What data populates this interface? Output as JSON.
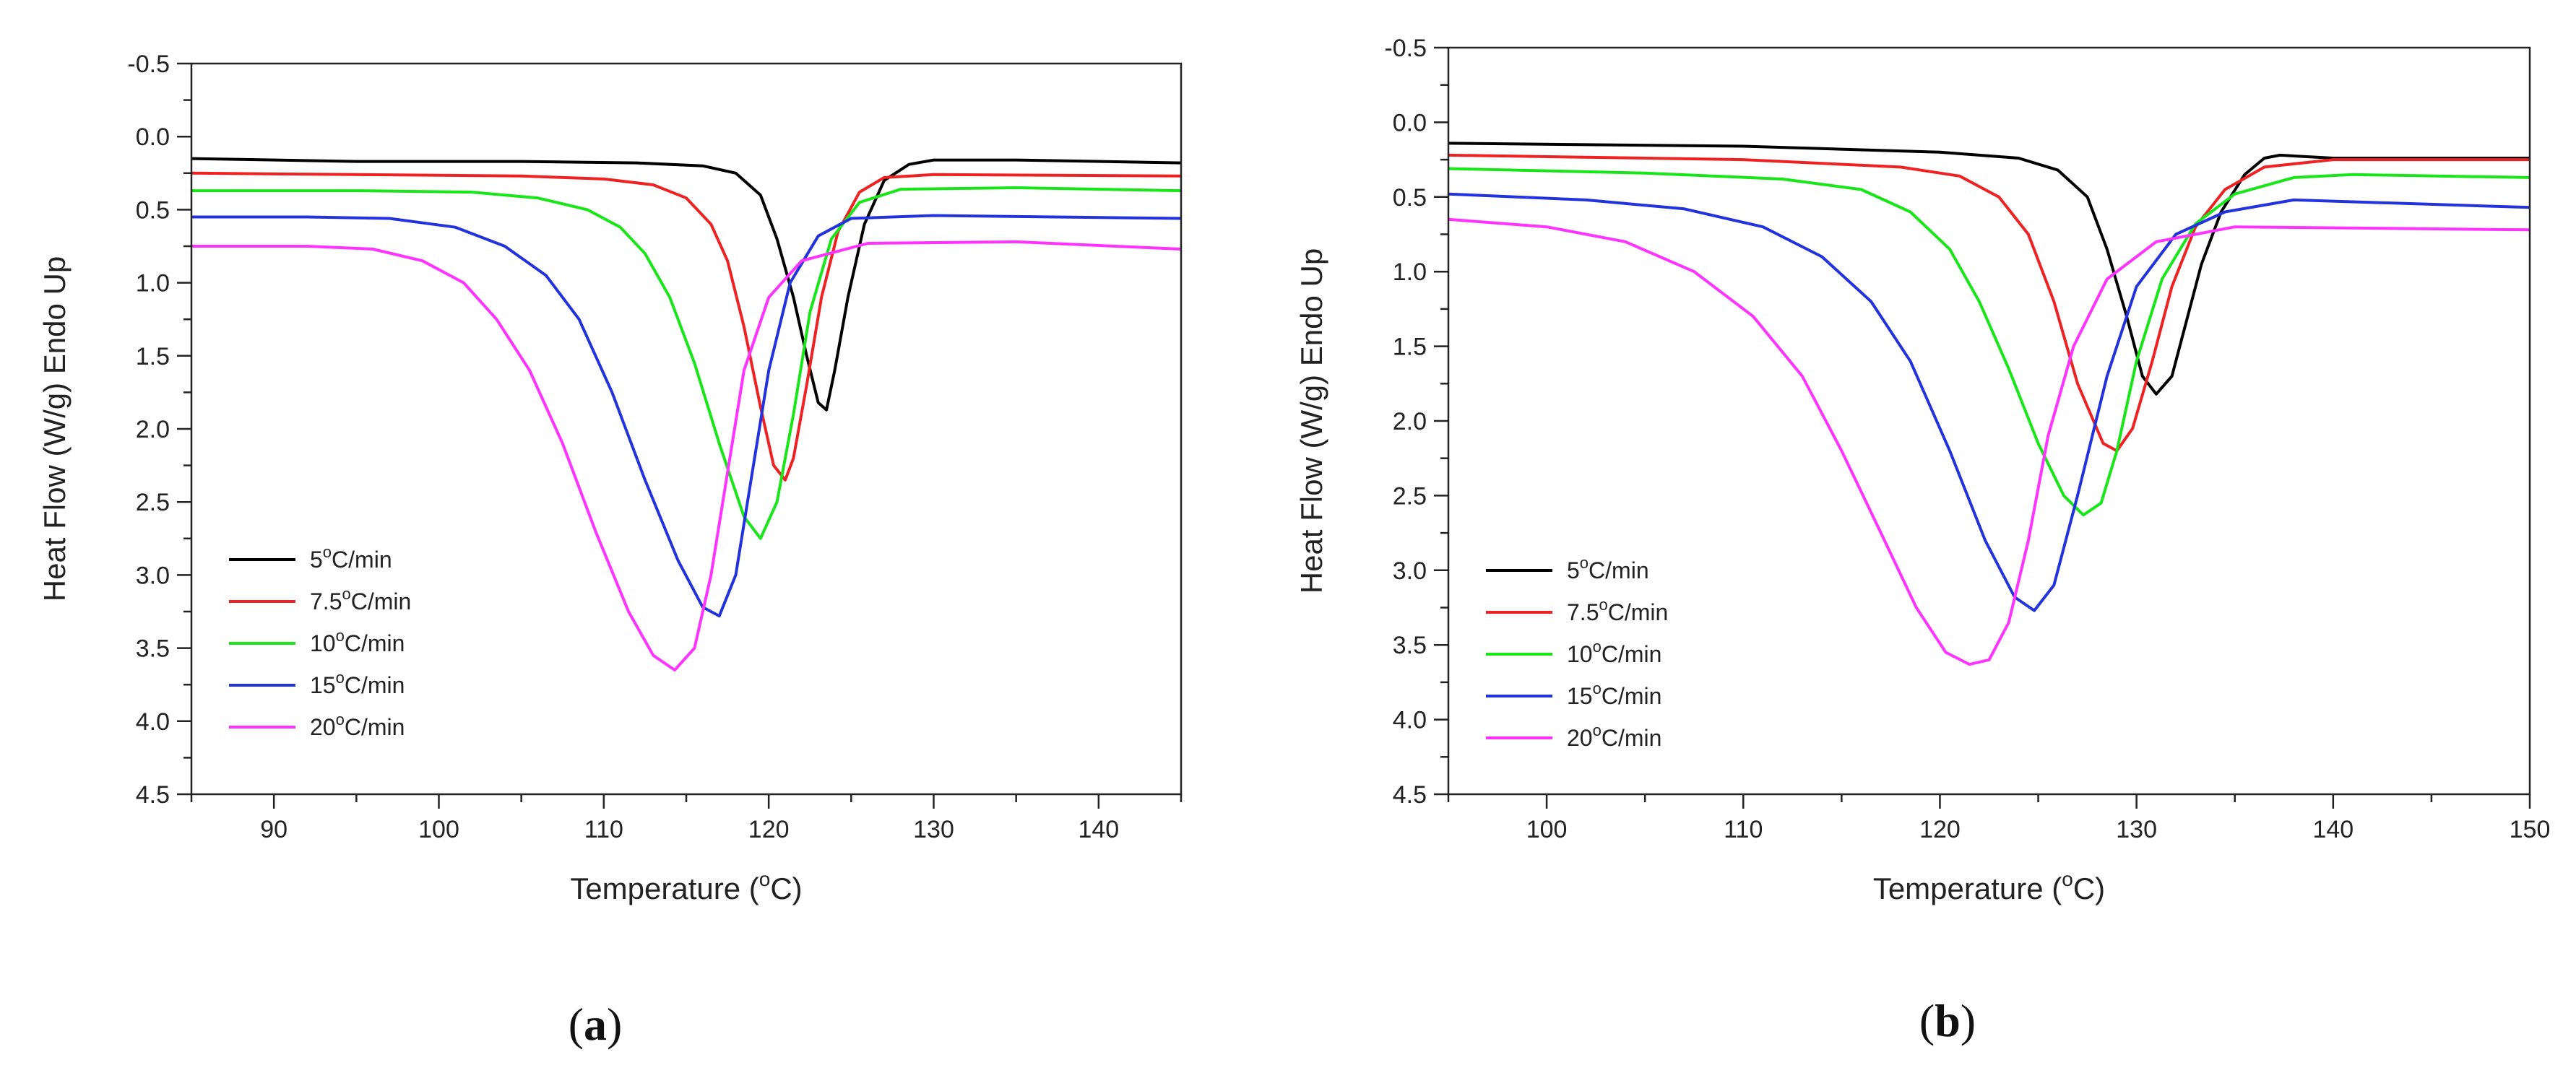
{
  "chart_data": [
    {
      "type": "line",
      "panel": "a",
      "panel_label": "a",
      "xlabel": "Temperature (oC)",
      "xlabel_parts": {
        "pre": "Temperature (",
        "sup": "o",
        "post": "C)"
      },
      "ylabel": "Heat Flow (W/g) Endo Up",
      "xlim": [
        85,
        145
      ],
      "ylim_top": -0.5,
      "ylim_bottom": 4.5,
      "y_inverted": true,
      "x_ticks": [
        90,
        100,
        110,
        120,
        130,
        140
      ],
      "y_ticks": [
        -0.5,
        0.0,
        0.5,
        1.0,
        1.5,
        2.0,
        2.5,
        3.0,
        3.5,
        4.0,
        4.5
      ],
      "x_tick_labels": [
        "90",
        "100",
        "110",
        "120",
        "130",
        "140"
      ],
      "y_tick_labels": [
        "-0.5",
        "0.0",
        "0.5",
        "1.0",
        "1.5",
        "2.0",
        "2.5",
        "3.0",
        "3.5",
        "4.0",
        "4.5"
      ],
      "legend_position": "bottom-left",
      "series": [
        {
          "name": "5oC/min",
          "label_num": "5",
          "label_unit": "C/min",
          "color": "#000000",
          "x": [
            85,
            95,
            105,
            112,
            116,
            118,
            119.5,
            120.5,
            121.5,
            122.3,
            123,
            123.5,
            124,
            124.8,
            125.8,
            127,
            128.5,
            130,
            135,
            145
          ],
          "y": [
            0.15,
            0.17,
            0.17,
            0.18,
            0.2,
            0.25,
            0.4,
            0.7,
            1.1,
            1.5,
            1.82,
            1.87,
            1.6,
            1.1,
            0.6,
            0.3,
            0.19,
            0.16,
            0.16,
            0.18
          ]
        },
        {
          "name": "7.5oC/min",
          "label_num": "7.5",
          "label_unit": "C/min",
          "color": "#ee2222",
          "x": [
            85,
            95,
            105,
            110,
            113,
            115,
            116.5,
            117.5,
            118.5,
            119.5,
            120.3,
            121,
            121.5,
            122.3,
            123.2,
            124.2,
            125.5,
            127,
            130,
            145
          ],
          "y": [
            0.25,
            0.26,
            0.27,
            0.29,
            0.33,
            0.42,
            0.6,
            0.85,
            1.3,
            1.85,
            2.25,
            2.35,
            2.2,
            1.7,
            1.1,
            0.65,
            0.38,
            0.28,
            0.26,
            0.27
          ]
        },
        {
          "name": "10oC/min",
          "label_num": "10",
          "label_unit": "C/min",
          "color": "#19e619",
          "x": [
            85,
            95,
            102,
            106,
            109,
            111,
            112.5,
            114,
            115.5,
            117,
            118.5,
            119.5,
            120.5,
            121.5,
            122.5,
            123.8,
            125.5,
            128,
            135,
            145
          ],
          "y": [
            0.37,
            0.37,
            0.38,
            0.42,
            0.5,
            0.62,
            0.8,
            1.1,
            1.55,
            2.1,
            2.6,
            2.75,
            2.5,
            1.9,
            1.2,
            0.7,
            0.45,
            0.36,
            0.35,
            0.37
          ]
        },
        {
          "name": "15oC/min",
          "label_num": "15",
          "label_unit": "C/min",
          "color": "#2233dd",
          "x": [
            85,
            92,
            97,
            101,
            104,
            106.5,
            108.5,
            110.5,
            112.5,
            114.5,
            116,
            117,
            118,
            119,
            120,
            121.3,
            123,
            125,
            130,
            145
          ],
          "y": [
            0.55,
            0.55,
            0.56,
            0.62,
            0.75,
            0.95,
            1.25,
            1.75,
            2.35,
            2.9,
            3.22,
            3.28,
            3.0,
            2.3,
            1.6,
            1.0,
            0.68,
            0.56,
            0.54,
            0.56
          ]
        },
        {
          "name": "20oC/min",
          "label_num": "20",
          "label_unit": "C/min",
          "color": "#ff33ff",
          "x": [
            85,
            92,
            96,
            99,
            101.5,
            103.5,
            105.5,
            107.5,
            109.5,
            111.5,
            113,
            114.3,
            115.5,
            116.5,
            117.5,
            118.5,
            120,
            122,
            126,
            135,
            145
          ],
          "y": [
            0.75,
            0.75,
            0.77,
            0.85,
            1.0,
            1.25,
            1.6,
            2.1,
            2.7,
            3.25,
            3.55,
            3.65,
            3.5,
            3.0,
            2.3,
            1.6,
            1.1,
            0.85,
            0.73,
            0.72,
            0.77
          ]
        }
      ]
    },
    {
      "type": "line",
      "panel": "b",
      "panel_label": "b",
      "xlabel": "Temperature (oC)",
      "xlabel_parts": {
        "pre": "Temperature (",
        "sup": "o",
        "post": "C)"
      },
      "ylabel": "Heat Flow (W/g) Endo Up",
      "xlim": [
        95,
        150
      ],
      "ylim_top": -0.5,
      "ylim_bottom": 4.5,
      "y_inverted": true,
      "x_ticks": [
        100,
        110,
        120,
        130,
        140,
        150
      ],
      "y_ticks": [
        -0.5,
        0.0,
        0.5,
        1.0,
        1.5,
        2.0,
        2.5,
        3.0,
        3.5,
        4.0,
        4.5
      ],
      "x_tick_labels": [
        "100",
        "110",
        "120",
        "130",
        "140",
        "150"
      ],
      "y_tick_labels": [
        "-0.5",
        "0.0",
        "0.5",
        "1.0",
        "1.5",
        "2.0",
        "2.5",
        "3.0",
        "3.5",
        "4.0",
        "4.5"
      ],
      "legend_position": "bottom-left",
      "series": [
        {
          "name": "5oC/min",
          "label_num": "5",
          "label_unit": "C/min",
          "color": "#000000",
          "x": [
            95,
            110,
            120,
            124,
            126,
            127.5,
            128.5,
            129.5,
            130.3,
            131,
            131.8,
            132.5,
            133.3,
            134.3,
            135.5,
            136.5,
            137.3,
            140,
            150
          ],
          "y": [
            0.14,
            0.16,
            0.2,
            0.24,
            0.32,
            0.5,
            0.85,
            1.3,
            1.7,
            1.82,
            1.7,
            1.35,
            0.95,
            0.6,
            0.35,
            0.24,
            0.22,
            0.24,
            0.24
          ]
        },
        {
          "name": "7.5oC/min",
          "label_num": "7.5",
          "label_unit": "C/min",
          "color": "#ee2222",
          "x": [
            95,
            110,
            118,
            121,
            123,
            124.5,
            125.8,
            127,
            128.3,
            129,
            129.8,
            130.8,
            131.8,
            133,
            134.5,
            136.5,
            140,
            150
          ],
          "y": [
            0.22,
            0.25,
            0.3,
            0.36,
            0.5,
            0.75,
            1.2,
            1.75,
            2.15,
            2.2,
            2.05,
            1.6,
            1.1,
            0.7,
            0.45,
            0.3,
            0.25,
            0.25
          ]
        },
        {
          "name": "10oC/min",
          "label_num": "10",
          "label_unit": "C/min",
          "color": "#19e619",
          "x": [
            95,
            105,
            112,
            116,
            118.5,
            120.5,
            122,
            123.5,
            125,
            126.3,
            127.3,
            128.2,
            129,
            130,
            131.3,
            133,
            135,
            138,
            141,
            150
          ],
          "y": [
            0.31,
            0.34,
            0.38,
            0.45,
            0.6,
            0.85,
            1.2,
            1.65,
            2.15,
            2.5,
            2.63,
            2.55,
            2.2,
            1.6,
            1.05,
            0.68,
            0.48,
            0.37,
            0.35,
            0.37
          ]
        },
        {
          "name": "15oC/min",
          "label_num": "15",
          "label_unit": "C/min",
          "color": "#2233dd",
          "x": [
            95,
            102,
            107,
            111,
            114,
            116.5,
            118.5,
            120.5,
            122.3,
            123.8,
            124.8,
            125.8,
            127,
            128.5,
            130,
            132,
            134.5,
            138,
            150
          ],
          "y": [
            0.48,
            0.52,
            0.58,
            0.7,
            0.9,
            1.2,
            1.6,
            2.2,
            2.8,
            3.18,
            3.27,
            3.1,
            2.5,
            1.7,
            1.1,
            0.75,
            0.6,
            0.52,
            0.57
          ]
        },
        {
          "name": "20oC/min",
          "label_num": "20",
          "label_unit": "C/min",
          "color": "#ff33ff",
          "x": [
            95,
            100,
            104,
            107.5,
            110.5,
            113,
            115,
            117,
            118.8,
            120.3,
            121.5,
            122.5,
            123.5,
            124.5,
            125.5,
            126.8,
            128.5,
            131,
            135,
            150
          ],
          "y": [
            0.65,
            0.7,
            0.8,
            1.0,
            1.3,
            1.7,
            2.2,
            2.75,
            3.25,
            3.55,
            3.63,
            3.6,
            3.35,
            2.8,
            2.1,
            1.5,
            1.05,
            0.8,
            0.7,
            0.72
          ]
        }
      ]
    }
  ]
}
